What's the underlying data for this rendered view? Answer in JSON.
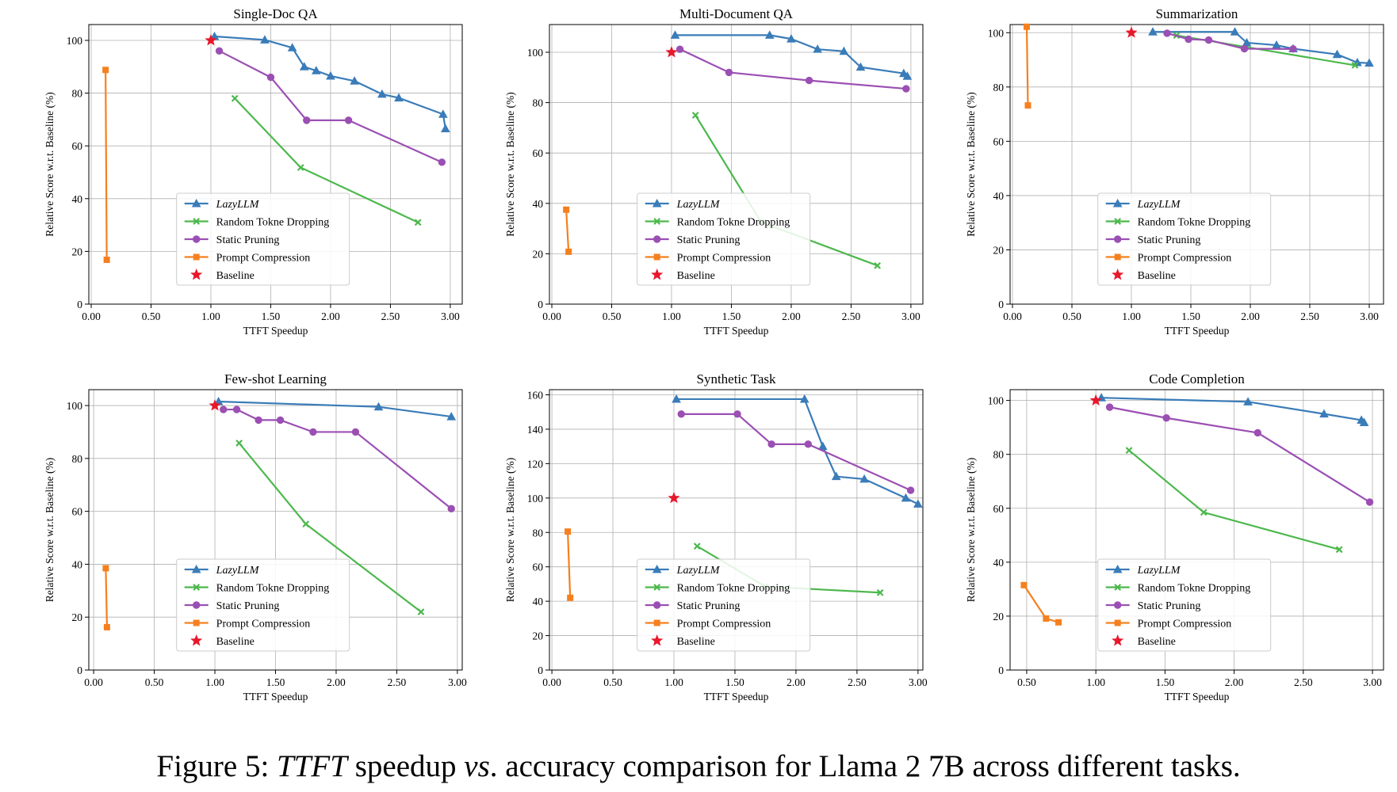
{
  "caption": {
    "prefix": "Figure 5: ",
    "ttft": "TTFT",
    "mid": " speedup ",
    "vs": "vs",
    "suffix": ". accuracy comparison for Llama 2 7B across different tasks."
  },
  "colors": {
    "lazyllm": "#3a7cb8",
    "random": "#4cb84c",
    "static": "#9b4fb3",
    "prompt": "#f5801f",
    "baseline": "#e8172b"
  },
  "chart_data": [
    {
      "type": "line",
      "title": "Single-Doc QA",
      "xlabel": "TTFT Speedup",
      "ylabel": "Relative Score w.r.t. Baseline (%)",
      "xlim": [
        -0.02,
        3.1
      ],
      "ylim": [
        0,
        106
      ],
      "xticks": [
        0,
        0.5,
        1,
        1.5,
        2,
        2.5,
        3
      ],
      "xtick_labels": [
        "0.00",
        "0.50",
        "1.00",
        "1.50",
        "2.00",
        "2.50",
        "3.00"
      ],
      "yticks": [
        0,
        20,
        40,
        60,
        80,
        100
      ],
      "ytick_labels": [
        "0",
        "20",
        "40",
        "60",
        "80",
        "100"
      ],
      "grid": true,
      "legend": {
        "position": "lower-center"
      },
      "series": [
        {
          "key": "lazyllm",
          "name": "LazyLLM",
          "marker": "triangle",
          "x": [
            1.03,
            1.45,
            1.68,
            1.78,
            1.88,
            2.0,
            2.2,
            2.43,
            2.57,
            2.94,
            2.96
          ],
          "y": [
            101.5,
            100.2,
            97.2,
            90.0,
            88.5,
            86.5,
            84.6,
            79.6,
            78.2,
            72.0,
            66.5
          ]
        },
        {
          "key": "random",
          "name": "Random Tokne Dropping",
          "marker": "x",
          "x": [
            1.2,
            1.75,
            2.73
          ],
          "y": [
            78.0,
            51.8,
            31.0
          ]
        },
        {
          "key": "static",
          "name": "Static Pruning",
          "marker": "circle",
          "x": [
            1.07,
            1.5,
            1.8,
            2.15,
            2.93
          ],
          "y": [
            96.0,
            86.0,
            69.7,
            69.7,
            53.8
          ]
        },
        {
          "key": "prompt",
          "name": "Prompt Compression",
          "marker": "square",
          "x": [
            0.12,
            0.13
          ],
          "y": [
            88.8,
            16.8
          ]
        },
        {
          "key": "baseline",
          "name": "Baseline",
          "marker": "star",
          "x": [
            1.0
          ],
          "y": [
            100.0
          ]
        }
      ]
    },
    {
      "type": "line",
      "title": "Multi-Document QA",
      "xlabel": "TTFT Speedup",
      "ylabel": "Relative Score w.r.t. Baseline (%)",
      "xlim": [
        -0.02,
        3.1
      ],
      "ylim": [
        0,
        111
      ],
      "xticks": [
        0,
        0.5,
        1,
        1.5,
        2,
        2.5,
        3
      ],
      "xtick_labels": [
        "0.00",
        "0.50",
        "1.00",
        "1.50",
        "2.00",
        "2.50",
        "3.00"
      ],
      "yticks": [
        0,
        20,
        40,
        60,
        80,
        100
      ],
      "ytick_labels": [
        "0",
        "20",
        "40",
        "60",
        "80",
        "100"
      ],
      "grid": true,
      "legend": {
        "position": "lower-center"
      },
      "series": [
        {
          "key": "lazyllm",
          "name": "LazyLLM",
          "marker": "triangle",
          "x": [
            1.03,
            1.82,
            2.0,
            2.22,
            2.44,
            2.58,
            2.94,
            2.97
          ],
          "y": [
            106.8,
            106.8,
            105.3,
            101.2,
            100.4,
            94.1,
            91.6,
            90.5
          ]
        },
        {
          "key": "random",
          "name": "Random Tokne Dropping",
          "marker": "x",
          "x": [
            1.2,
            1.75,
            2.72
          ],
          "y": [
            75.0,
            32.5,
            15.3
          ]
        },
        {
          "key": "static",
          "name": "Static Pruning",
          "marker": "circle",
          "x": [
            1.07,
            1.48,
            2.15,
            2.96
          ],
          "y": [
            101.2,
            92.0,
            88.8,
            85.5
          ]
        },
        {
          "key": "prompt",
          "name": "Prompt Compression",
          "marker": "square",
          "x": [
            0.12,
            0.14
          ],
          "y": [
            37.5,
            20.8
          ]
        },
        {
          "key": "baseline",
          "name": "Baseline",
          "marker": "star",
          "x": [
            1.0
          ],
          "y": [
            100.0
          ]
        }
      ]
    },
    {
      "type": "line",
      "title": "Summarization",
      "xlabel": "TTFT Speedup",
      "ylabel": "Relative Score w.r.t. Baseline (%)",
      "xlim": [
        -0.02,
        3.12
      ],
      "ylim": [
        0,
        103
      ],
      "xticks": [
        0,
        0.5,
        1,
        1.5,
        2,
        2.5,
        3
      ],
      "xtick_labels": [
        "0.00",
        "0.50",
        "1.00",
        "1.50",
        "2.00",
        "2.50",
        "3.00"
      ],
      "yticks": [
        0,
        20,
        40,
        60,
        80,
        100
      ],
      "ytick_labels": [
        "0",
        "20",
        "40",
        "60",
        "80",
        "100"
      ],
      "grid": true,
      "legend": {
        "position": "lower-center"
      },
      "series": [
        {
          "key": "lazyllm",
          "name": "LazyLLM",
          "marker": "triangle",
          "x": [
            1.18,
            1.87,
            1.97,
            2.22,
            2.36,
            2.73,
            2.9,
            3.0
          ],
          "y": [
            100.3,
            100.3,
            96.3,
            95.4,
            94.1,
            92.0,
            89.0,
            88.8
          ]
        },
        {
          "key": "random",
          "name": "Random Tokne Dropping",
          "marker": "x",
          "x": [
            1.38,
            2.88
          ],
          "y": [
            99.0,
            88.0
          ]
        },
        {
          "key": "static",
          "name": "Static Pruning",
          "marker": "circle",
          "x": [
            1.3,
            1.48,
            1.65,
            1.95,
            2.36
          ],
          "y": [
            99.8,
            97.6,
            97.3,
            94.1,
            94.0
          ]
        },
        {
          "key": "prompt",
          "name": "Prompt Compression",
          "marker": "square",
          "x": [
            0.12,
            0.13
          ],
          "y": [
            102.2,
            73.2
          ]
        },
        {
          "key": "baseline",
          "name": "Baseline",
          "marker": "star",
          "x": [
            1.0
          ],
          "y": [
            100.0
          ]
        }
      ]
    },
    {
      "type": "line",
      "title": "Few-shot Learning",
      "xlabel": "TTFT Speedup",
      "ylabel": "Relative Score w.r.t. Baseline (%)",
      "xlim": [
        -0.04,
        3.04
      ],
      "ylim": [
        0,
        106
      ],
      "xticks": [
        0,
        0.5,
        1,
        1.5,
        2,
        2.5,
        3
      ],
      "xtick_labels": [
        "0.00",
        "0.50",
        "1.00",
        "1.50",
        "2.00",
        "2.50",
        "3.00"
      ],
      "yticks": [
        0,
        20,
        40,
        60,
        80,
        100
      ],
      "ytick_labels": [
        "0",
        "20",
        "40",
        "60",
        "80",
        "100"
      ],
      "grid": true,
      "legend": {
        "position": "lower-center"
      },
      "series": [
        {
          "key": "lazyllm",
          "name": "LazyLLM",
          "marker": "triangle",
          "x": [
            1.03,
            2.35,
            2.95
          ],
          "y": [
            101.5,
            99.5,
            95.8
          ]
        },
        {
          "key": "random",
          "name": "Random Tokne Dropping",
          "marker": "x",
          "x": [
            1.2,
            1.75,
            2.7
          ],
          "y": [
            85.8,
            55.2,
            22.0
          ]
        },
        {
          "key": "static",
          "name": "Static Pruning",
          "marker": "circle",
          "x": [
            1.07,
            1.18,
            1.36,
            1.54,
            1.81,
            2.16,
            2.95
          ],
          "y": [
            98.5,
            98.5,
            94.5,
            94.5,
            90.0,
            90.0,
            61.0
          ]
        },
        {
          "key": "prompt",
          "name": "Prompt Compression",
          "marker": "square",
          "x": [
            0.1,
            0.11
          ],
          "y": [
            38.5,
            16.2
          ]
        },
        {
          "key": "baseline",
          "name": "Baseline",
          "marker": "star",
          "x": [
            1.0
          ],
          "y": [
            100.0
          ]
        }
      ]
    },
    {
      "type": "line",
      "title": "Synthetic Task",
      "xlabel": "TTFT Speedup",
      "ylabel": "Relative Score w.r.t. Baseline (%)",
      "xlim": [
        -0.02,
        3.04
      ],
      "ylim": [
        0,
        163
      ],
      "xticks": [
        0,
        0.5,
        1,
        1.5,
        2,
        2.5,
        3
      ],
      "xtick_labels": [
        "0.00",
        "0.50",
        "1.00",
        "1.50",
        "2.00",
        "2.50",
        "3.00"
      ],
      "yticks": [
        0,
        20,
        40,
        60,
        80,
        100,
        120,
        140,
        160
      ],
      "ytick_labels": [
        "0",
        "20",
        "40",
        "60",
        "80",
        "100",
        "120",
        "140",
        "160"
      ],
      "grid": true,
      "legend": {
        "position": "lower-center"
      },
      "series": [
        {
          "key": "lazyllm",
          "name": "LazyLLM",
          "marker": "triangle",
          "x": [
            1.02,
            2.07,
            2.22,
            2.33,
            2.56,
            2.9,
            3.0
          ],
          "y": [
            157.5,
            157.5,
            130.0,
            112.5,
            111.0,
            100.0,
            96.5
          ]
        },
        {
          "key": "random",
          "name": "Random Tokne Dropping",
          "marker": "x",
          "x": [
            1.19,
            1.75,
            2.69
          ],
          "y": [
            72.0,
            48.5,
            45.0
          ]
        },
        {
          "key": "static",
          "name": "Static Pruning",
          "marker": "circle",
          "x": [
            1.06,
            1.52,
            1.8,
            2.1,
            2.94
          ],
          "y": [
            148.8,
            148.8,
            131.3,
            131.3,
            104.5
          ]
        },
        {
          "key": "prompt",
          "name": "Prompt Compression",
          "marker": "square",
          "x": [
            0.13,
            0.15
          ],
          "y": [
            80.5,
            42.0
          ]
        },
        {
          "key": "baseline",
          "name": "Baseline",
          "marker": "star",
          "x": [
            1.0
          ],
          "y": [
            100.0
          ]
        }
      ]
    },
    {
      "type": "line",
      "title": "Code Completion",
      "xlabel": "TTFT Speedup",
      "ylabel": "Relative Score w.r.t. Baseline (%)",
      "xlim": [
        0.38,
        3.08
      ],
      "ylim": [
        0,
        104
      ],
      "xticks": [
        0.5,
        1,
        1.5,
        2,
        2.5,
        3
      ],
      "xtick_labels": [
        "0.50",
        "1.00",
        "1.50",
        "2.00",
        "2.50",
        "3.00"
      ],
      "yticks": [
        0,
        20,
        40,
        60,
        80,
        100
      ],
      "ytick_labels": [
        "0",
        "20",
        "40",
        "60",
        "80",
        "100"
      ],
      "grid": true,
      "legend": {
        "position": "lower-center"
      },
      "series": [
        {
          "key": "lazyllm",
          "name": "LazyLLM",
          "marker": "triangle",
          "x": [
            1.04,
            2.1,
            2.65,
            2.92,
            2.94
          ],
          "y": [
            101.0,
            99.5,
            95.0,
            92.7,
            91.8
          ]
        },
        {
          "key": "random",
          "name": "Random Tokne Dropping",
          "marker": "x",
          "x": [
            1.24,
            1.78,
            2.76
          ],
          "y": [
            81.5,
            58.5,
            44.7
          ]
        },
        {
          "key": "static",
          "name": "Static Pruning",
          "marker": "circle",
          "x": [
            1.1,
            1.51,
            2.17,
            2.98
          ],
          "y": [
            97.5,
            93.5,
            88.0,
            62.3
          ]
        },
        {
          "key": "prompt",
          "name": "Prompt Compression",
          "marker": "square",
          "x": [
            0.48,
            0.64,
            0.73
          ],
          "y": [
            31.5,
            19.1,
            17.7
          ]
        },
        {
          "key": "baseline",
          "name": "Baseline",
          "marker": "star",
          "x": [
            1.0
          ],
          "y": [
            100.0
          ]
        }
      ]
    }
  ]
}
